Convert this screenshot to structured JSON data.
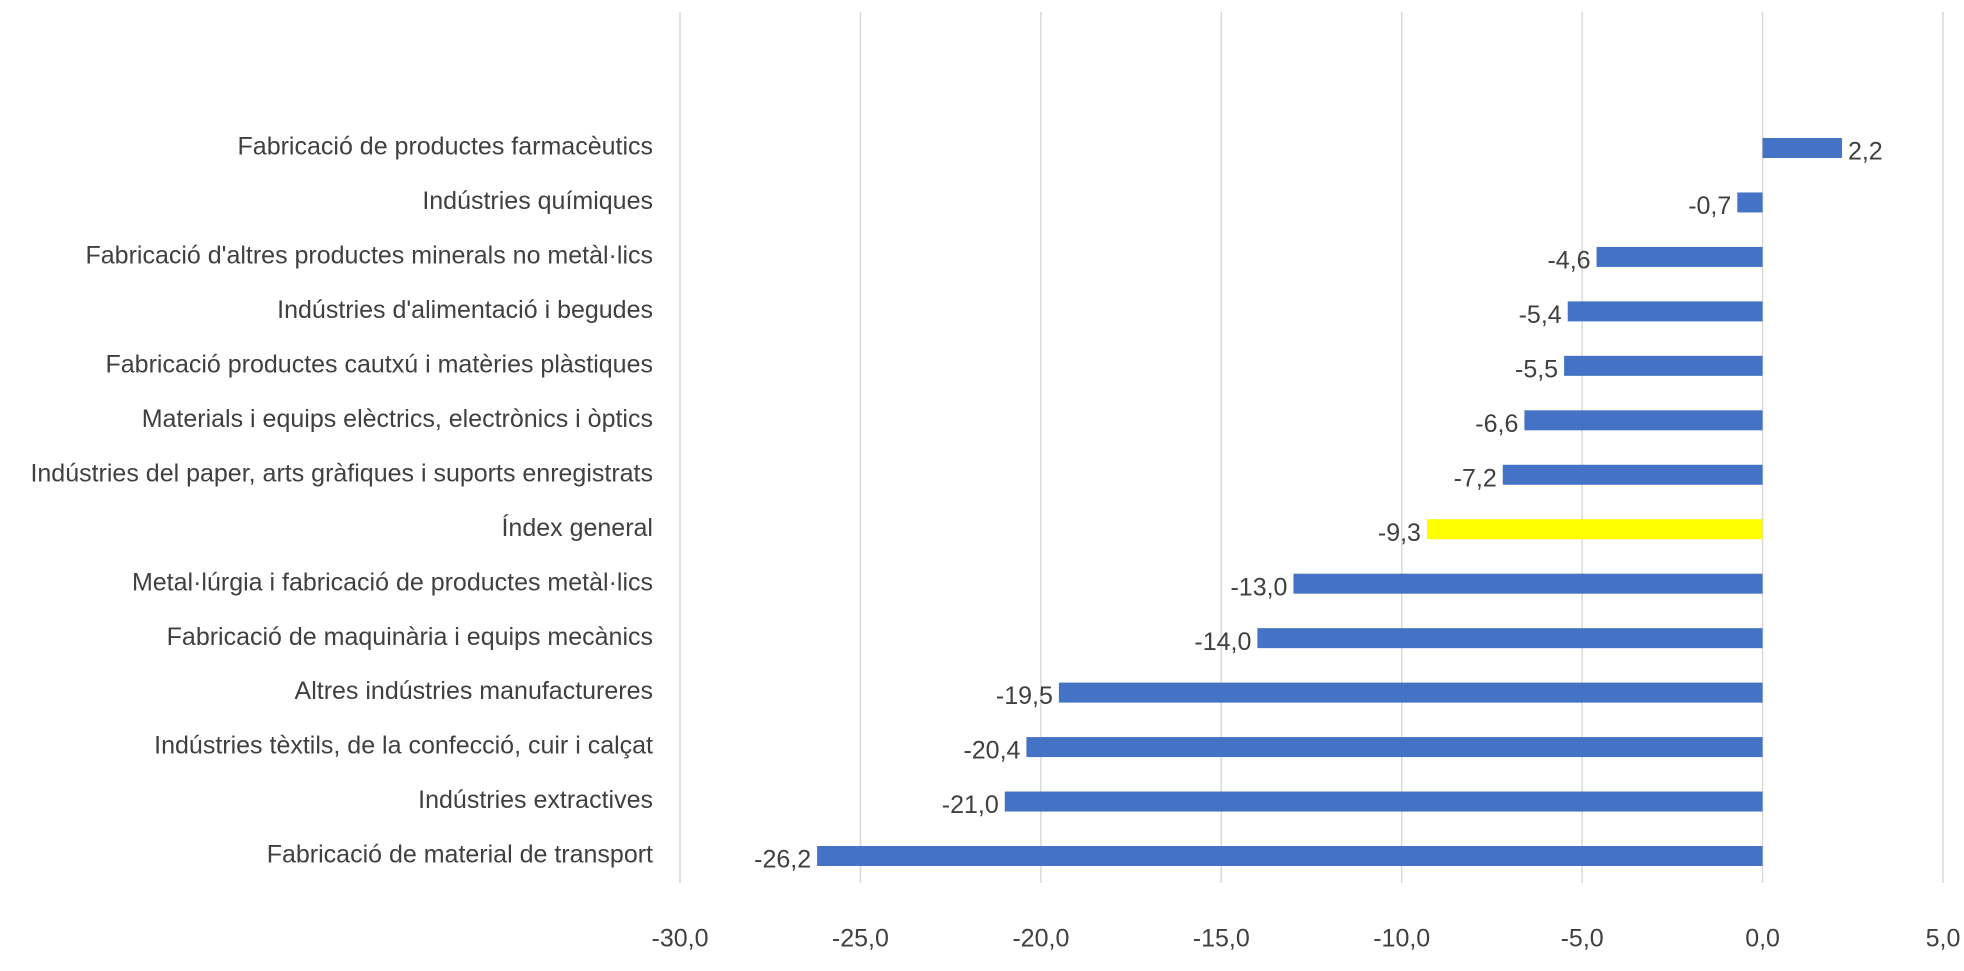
{
  "chart_data": {
    "type": "bar",
    "orientation": "horizontal",
    "categories": [
      "Fabricació de productes farmacèutics",
      "Indústries químiques",
      "Fabricació d'altres productes minerals no metàl·lics",
      "Indústries d'alimentació i begudes",
      "Fabricació productes cautxú i matèries plàstiques",
      "Materials i equips elèctrics, electrònics i òptics",
      "Indústries del paper, arts gràfiques i suports enregistrats",
      "Índex general",
      "Metal·lúrgia i fabricació de productes metàl·lics",
      "Fabricació de maquinària i equips mecànics",
      "Altres indústries manufactureres",
      "Indústries tèxtils, de la confecció, cuir i calçat",
      "Indústries extractives",
      "Fabricació de material de transport"
    ],
    "values": [
      2.2,
      -0.7,
      -4.6,
      -5.4,
      -5.5,
      -6.6,
      -7.2,
      -9.3,
      -13.0,
      -14.0,
      -19.5,
      -20.4,
      -21.0,
      -26.2
    ],
    "value_labels": [
      "2,2",
      "-0,7",
      "-4,6",
      "-5,4",
      "-5,5",
      "-6,6",
      "-7,2",
      "-9,3",
      "-13,0",
      "-14,0",
      "-19,5",
      "-20,4",
      "-21,0",
      "-26,2"
    ],
    "colors": [
      "#4472c4",
      "#4472c4",
      "#4472c4",
      "#4472c4",
      "#4472c4",
      "#4472c4",
      "#4472c4",
      "#ffff00",
      "#4472c4",
      "#4472c4",
      "#4472c4",
      "#4472c4",
      "#4472c4",
      "#4472c4"
    ],
    "xlim": [
      -30,
      5
    ],
    "xticks": [
      {
        "value": -30,
        "label": "-30,0"
      },
      {
        "value": -25,
        "label": "-25,0"
      },
      {
        "value": -20,
        "label": "-20,0"
      },
      {
        "value": -15,
        "label": "-15,0"
      },
      {
        "value": -10,
        "label": "-10,0"
      },
      {
        "value": -5,
        "label": "-5,0"
      },
      {
        "value": 0,
        "label": "0,0"
      },
      {
        "value": 5,
        "label": "5,0"
      }
    ],
    "grid": true
  }
}
